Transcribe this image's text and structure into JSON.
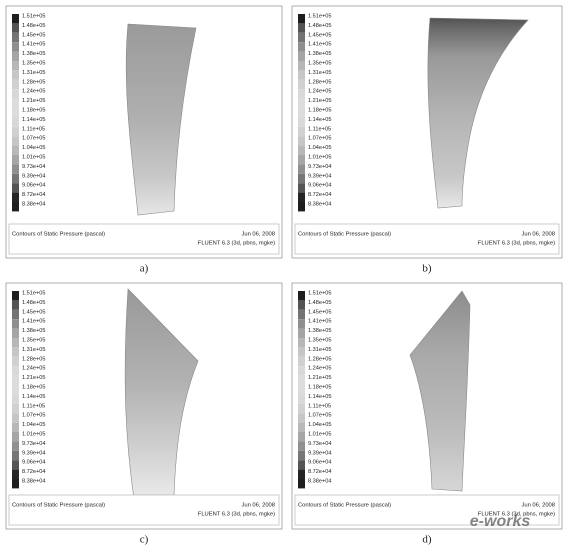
{
  "colorbar_labels": [
    "1.51e+05",
    "1.48e+05",
    "1.45e+05",
    "1.41e+05",
    "1.38e+05",
    "1.35e+05",
    "1.31e+05",
    "1.28e+05",
    "1.24e+05",
    "1.21e+05",
    "1.18e+05",
    "1.14e+05",
    "1.11e+05",
    "1.07e+05",
    "1.04e+05",
    "1.01e+05",
    "9.73e+04",
    "9.39e+04",
    "9.06e+04",
    "8.72e+04",
    "8.38e+04"
  ],
  "panels": [
    {
      "caption": "a)",
      "title": "Contours of Static Pressure (pascal)",
      "date": "Jun 06, 2008",
      "software": "FLUENT 6.3 (3d, pbns, mgke)"
    },
    {
      "caption": "b)",
      "title": "Contours of Static Pressure (pascal)",
      "date": "Jun 06, 2008",
      "software": "FLUENT 6.3 (3d, pbns, mgke)"
    },
    {
      "caption": "c)",
      "title": "Contours of Static Pressure (pascal)",
      "date": "Jun 06, 2008",
      "software": "FLUENT 6.3 (3d, pbns, mgke)"
    },
    {
      "caption": "d)",
      "title": "Contours of Static Pressure (pascal)",
      "date": "Jun 06, 2008",
      "software": "FLUENT 6.3 (3d, pbns, mgke)"
    }
  ],
  "watermark": "e-works"
}
